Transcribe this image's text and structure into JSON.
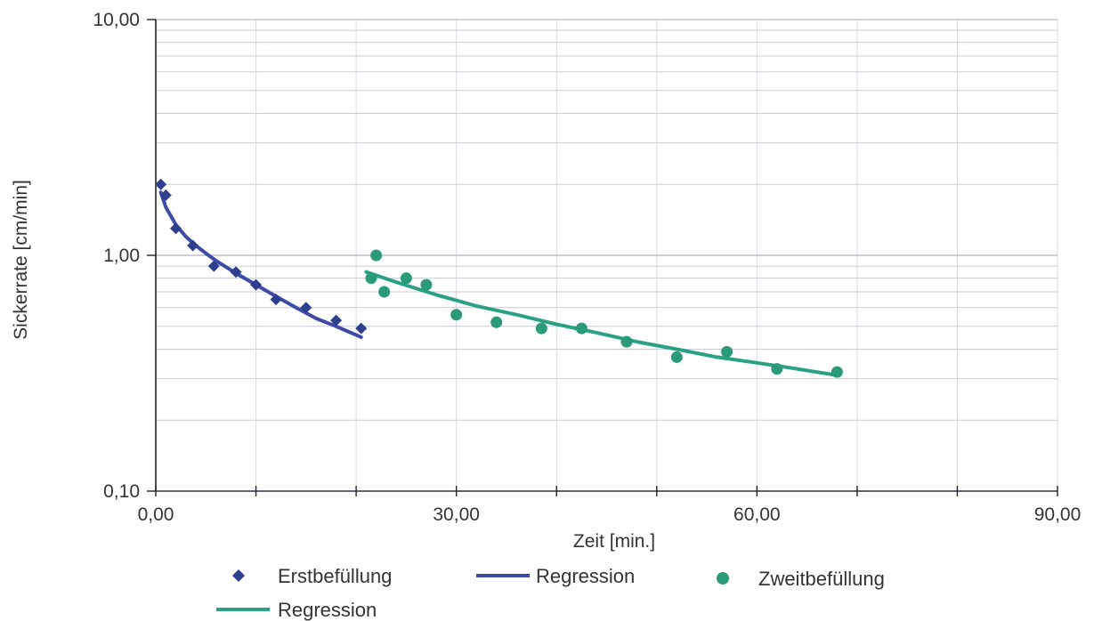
{
  "chart_data": {
    "type": "scatter",
    "title": "",
    "xlabel": "Zeit [min.]",
    "ylabel": "Sickerrate [cm/min]",
    "xlim": [
      0,
      90
    ],
    "ylim": [
      0.1,
      10
    ],
    "yscale": "log",
    "xticks": [
      {
        "value": 0,
        "label": "0,00"
      },
      {
        "value": 30,
        "label": "30,00"
      },
      {
        "value": 60,
        "label": "60,00"
      },
      {
        "value": 90,
        "label": "90,00"
      }
    ],
    "yticks": [
      {
        "value": 0.1,
        "label": "0,10"
      },
      {
        "value": 1,
        "label": "1,00"
      },
      {
        "value": 10,
        "label": "10,00"
      }
    ],
    "grid": true,
    "legend_position": "bottom",
    "series": [
      {
        "name": "Erstbefüllung",
        "kind": "points",
        "marker": "diamond",
        "color": "#2e3f8f",
        "x": [
          0.5,
          1.0,
          2.0,
          3.7,
          5.8,
          8.0,
          10.0,
          12.0,
          15.0,
          18.0,
          20.5
        ],
        "y": [
          2.0,
          1.8,
          1.3,
          1.1,
          0.9,
          0.85,
          0.75,
          0.65,
          0.6,
          0.53,
          0.49
        ]
      },
      {
        "name": "Regression",
        "kind": "line",
        "color": "#3d4ba6",
        "x": [
          0.5,
          1,
          2,
          3,
          4,
          5,
          6,
          8,
          10,
          12,
          14,
          16,
          18,
          20.5
        ],
        "y": [
          1.85,
          1.6,
          1.35,
          1.2,
          1.1,
          1.02,
          0.95,
          0.84,
          0.75,
          0.67,
          0.6,
          0.54,
          0.5,
          0.45
        ]
      },
      {
        "name": "Zweitbefüllung",
        "kind": "points",
        "marker": "circle",
        "color": "#2a9a78",
        "x": [
          21.5,
          22.0,
          22.8,
          25.0,
          27.0,
          30.0,
          34.0,
          38.5,
          42.5,
          47.0,
          52.0,
          57.0,
          62.0,
          68.0
        ],
        "y": [
          0.8,
          1.0,
          0.7,
          0.8,
          0.75,
          0.56,
          0.52,
          0.49,
          0.49,
          0.43,
          0.37,
          0.39,
          0.33,
          0.32
        ]
      },
      {
        "name": "Regression",
        "kind": "line",
        "color": "#2aa185",
        "x": [
          21,
          24,
          28,
          32,
          36,
          40,
          44,
          48,
          52,
          56,
          60,
          64,
          68
        ],
        "y": [
          0.85,
          0.77,
          0.68,
          0.61,
          0.56,
          0.51,
          0.47,
          0.43,
          0.4,
          0.37,
          0.35,
          0.33,
          0.31
        ]
      }
    ],
    "legend": [
      {
        "label": "Erstbefüllung",
        "series": 0
      },
      {
        "label": "Regression",
        "series": 1
      },
      {
        "label": "Zweitbefüllung",
        "series": 2
      },
      {
        "label": "Regression",
        "series": 3
      }
    ]
  }
}
